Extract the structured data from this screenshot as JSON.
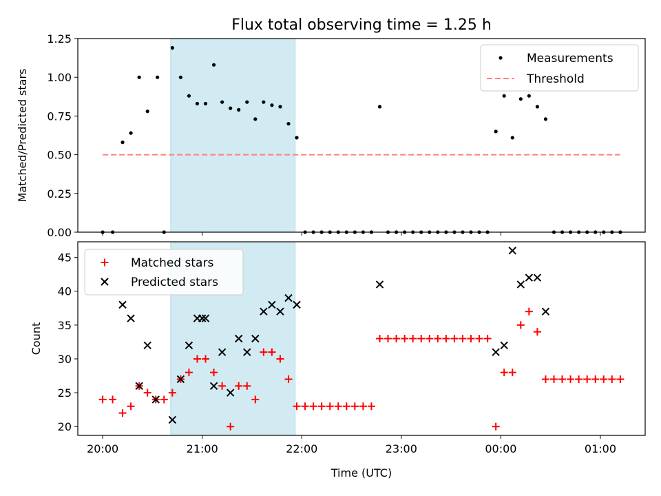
{
  "title": "Flux total observing time = 1.25 h",
  "colors": {
    "measurement": "#000000",
    "threshold": "#ff7f7f",
    "matched": "#ff0000",
    "predicted": "#000000",
    "span_fill": "#add8e6"
  },
  "chart_data": [
    {
      "type": "scatter",
      "ylabel": "Matched/Predicted stars",
      "ylim": [
        0,
        1.25
      ],
      "yticks": [
        0,
        0.25,
        0.5,
        0.75,
        1.0,
        1.25
      ],
      "ytick_labels": [
        "0.00",
        "0.25",
        "0.50",
        "0.75",
        "1.00",
        "1.25"
      ],
      "legend": {
        "position": "top-right",
        "entries": [
          "Measurements",
          "Threshold"
        ]
      },
      "shaded_span": {
        "start": "20:41",
        "end": "21:56"
      },
      "threshold": {
        "value": 0.5,
        "start": "20:00",
        "end": "01:12"
      },
      "series": [
        {
          "name": "Measurements",
          "points": [
            [
              "20:00",
              0.0
            ],
            [
              "20:06",
              0.0
            ],
            [
              "20:12",
              0.58
            ],
            [
              "20:17",
              0.64
            ],
            [
              "20:22",
              1.0
            ],
            [
              "20:27",
              0.78
            ],
            [
              "20:33",
              1.0
            ],
            [
              "20:37",
              0.0
            ],
            [
              "20:42",
              1.19
            ],
            [
              "20:47",
              1.0
            ],
            [
              "20:52",
              0.88
            ],
            [
              "20:57",
              0.83
            ],
            [
              "21:02",
              0.83
            ],
            [
              "21:07",
              1.08
            ],
            [
              "21:12",
              0.84
            ],
            [
              "21:17",
              0.8
            ],
            [
              "21:22",
              0.79
            ],
            [
              "21:27",
              0.84
            ],
            [
              "21:32",
              0.73
            ],
            [
              "21:37",
              0.84
            ],
            [
              "21:42",
              0.82
            ],
            [
              "21:47",
              0.81
            ],
            [
              "21:52",
              0.7
            ],
            [
              "21:57",
              0.61
            ],
            [
              "22:02",
              0.0
            ],
            [
              "22:07",
              0.0
            ],
            [
              "22:12",
              0.0
            ],
            [
              "22:17",
              0.0
            ],
            [
              "22:22",
              0.0
            ],
            [
              "22:27",
              0.0
            ],
            [
              "22:32",
              0.0
            ],
            [
              "22:37",
              0.0
            ],
            [
              "22:42",
              0.0
            ],
            [
              "22:47",
              0.81
            ],
            [
              "22:52",
              0.0
            ],
            [
              "22:57",
              0.0
            ],
            [
              "23:02",
              0.0
            ],
            [
              "23:07",
              0.0
            ],
            [
              "23:12",
              0.0
            ],
            [
              "23:17",
              0.0
            ],
            [
              "23:22",
              0.0
            ],
            [
              "23:27",
              0.0
            ],
            [
              "23:32",
              0.0
            ],
            [
              "23:37",
              0.0
            ],
            [
              "23:42",
              0.0
            ],
            [
              "23:47",
              0.0
            ],
            [
              "23:52",
              0.0
            ],
            [
              "23:57",
              0.65
            ],
            [
              "00:02",
              0.88
            ],
            [
              "00:07",
              0.61
            ],
            [
              "00:12",
              0.86
            ],
            [
              "00:17",
              0.88
            ],
            [
              "00:22",
              0.81
            ],
            [
              "00:27",
              0.73
            ],
            [
              "00:32",
              0.0
            ],
            [
              "00:37",
              0.0
            ],
            [
              "00:42",
              0.0
            ],
            [
              "00:47",
              0.0
            ],
            [
              "00:52",
              0.0
            ],
            [
              "00:57",
              0.0
            ],
            [
              "01:02",
              0.0
            ],
            [
              "01:07",
              0.0
            ],
            [
              "01:12",
              0.0
            ]
          ]
        }
      ]
    },
    {
      "type": "scatter",
      "xlabel": "Time (UTC)",
      "ylabel": "Count",
      "ylim": [
        18.7,
        47.3
      ],
      "yticks": [
        20,
        25,
        30,
        35,
        40,
        45
      ],
      "ytick_labels": [
        "20",
        "25",
        "30",
        "35",
        "40",
        "45"
      ],
      "xlim": [
        "19:45",
        "01:27"
      ],
      "xticks": [
        "20:00",
        "21:00",
        "22:00",
        "23:00",
        "00:00",
        "01:00"
      ],
      "legend": {
        "position": "top-left",
        "entries": [
          "Matched stars",
          "Predicted stars"
        ]
      },
      "shaded_span": {
        "start": "20:41",
        "end": "21:56"
      },
      "series": [
        {
          "name": "Matched stars",
          "marker": "+",
          "points": [
            [
              "20:00",
              24
            ],
            [
              "20:06",
              24
            ],
            [
              "20:12",
              22
            ],
            [
              "20:17",
              23
            ],
            [
              "20:22",
              26
            ],
            [
              "20:27",
              25
            ],
            [
              "20:32",
              24
            ],
            [
              "20:37",
              24
            ],
            [
              "20:42",
              25
            ],
            [
              "20:47",
              27
            ],
            [
              "20:52",
              28
            ],
            [
              "20:57",
              30
            ],
            [
              "21:02",
              30
            ],
            [
              "21:07",
              28
            ],
            [
              "21:12",
              26
            ],
            [
              "21:17",
              20
            ],
            [
              "21:22",
              26
            ],
            [
              "21:27",
              26
            ],
            [
              "21:32",
              24
            ],
            [
              "21:37",
              31
            ],
            [
              "21:42",
              31
            ],
            [
              "21:47",
              30
            ],
            [
              "21:52",
              27
            ],
            [
              "21:57",
              23
            ],
            [
              "22:02",
              23
            ],
            [
              "22:07",
              23
            ],
            [
              "22:12",
              23
            ],
            [
              "22:17",
              23
            ],
            [
              "22:22",
              23
            ],
            [
              "22:27",
              23
            ],
            [
              "22:32",
              23
            ],
            [
              "22:37",
              23
            ],
            [
              "22:42",
              23
            ],
            [
              "22:47",
              33
            ],
            [
              "22:52",
              33
            ],
            [
              "22:57",
              33
            ],
            [
              "23:02",
              33
            ],
            [
              "23:07",
              33
            ],
            [
              "23:12",
              33
            ],
            [
              "23:17",
              33
            ],
            [
              "23:22",
              33
            ],
            [
              "23:27",
              33
            ],
            [
              "23:32",
              33
            ],
            [
              "23:37",
              33
            ],
            [
              "23:42",
              33
            ],
            [
              "23:47",
              33
            ],
            [
              "23:52",
              33
            ],
            [
              "23:57",
              20
            ],
            [
              "00:02",
              28
            ],
            [
              "00:07",
              28
            ],
            [
              "00:12",
              35
            ],
            [
              "00:17",
              37
            ],
            [
              "00:22",
              34
            ],
            [
              "00:27",
              27
            ],
            [
              "00:32",
              27
            ],
            [
              "00:37",
              27
            ],
            [
              "00:42",
              27
            ],
            [
              "00:47",
              27
            ],
            [
              "00:52",
              27
            ],
            [
              "00:57",
              27
            ],
            [
              "01:02",
              27
            ],
            [
              "01:07",
              27
            ],
            [
              "01:12",
              27
            ]
          ]
        },
        {
          "name": "Predicted stars",
          "marker": "x",
          "points": [
            [
              "20:12",
              38
            ],
            [
              "20:17",
              36
            ],
            [
              "20:22",
              26
            ],
            [
              "20:27",
              32
            ],
            [
              "20:32",
              24
            ],
            [
              "20:42",
              21
            ],
            [
              "20:47",
              27
            ],
            [
              "20:52",
              32
            ],
            [
              "20:57",
              36
            ],
            [
              "21:00",
              36
            ],
            [
              "21:02",
              36
            ],
            [
              "21:07",
              26
            ],
            [
              "21:12",
              31
            ],
            [
              "21:17",
              25
            ],
            [
              "21:22",
              33
            ],
            [
              "21:27",
              31
            ],
            [
              "21:32",
              33
            ],
            [
              "21:37",
              37
            ],
            [
              "21:42",
              38
            ],
            [
              "21:47",
              37
            ],
            [
              "21:52",
              39
            ],
            [
              "21:57",
              38
            ],
            [
              "22:47",
              41
            ],
            [
              "23:57",
              31
            ],
            [
              "00:02",
              32
            ],
            [
              "00:07",
              46
            ],
            [
              "00:12",
              41
            ],
            [
              "00:17",
              42
            ],
            [
              "00:22",
              42
            ],
            [
              "00:27",
              37
            ]
          ]
        }
      ]
    }
  ]
}
